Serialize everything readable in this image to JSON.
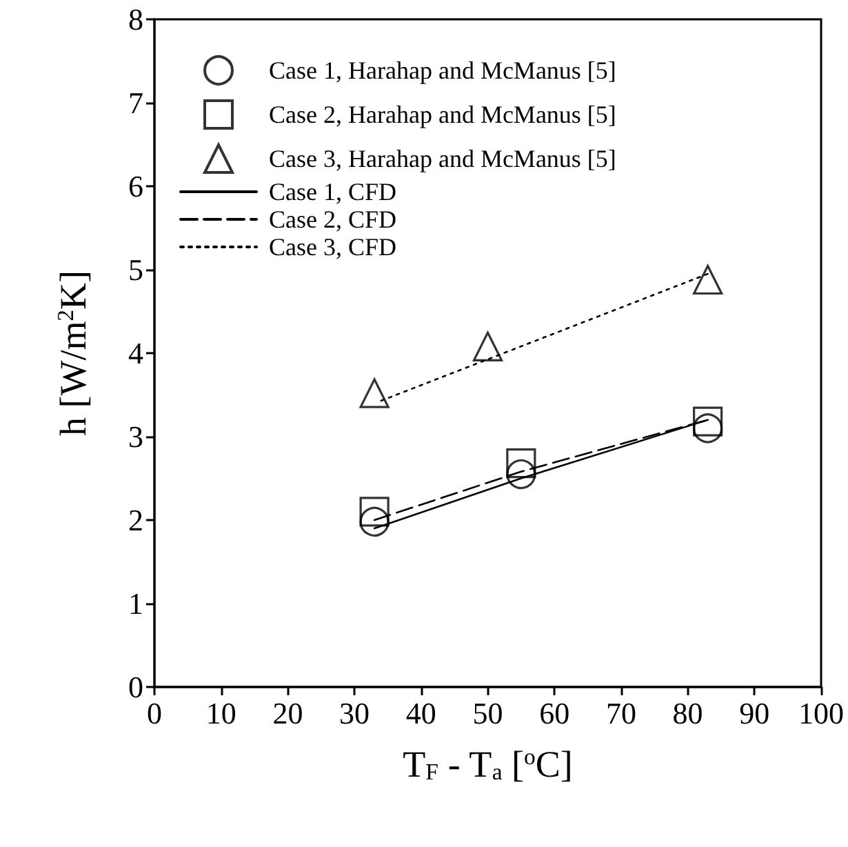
{
  "chart_data": {
    "type": "scatter",
    "xlabel": "T$_{F}$ - T$_{a}$ [$^{o}$C]",
    "ylabel": "h [W/m$^{2}$K]",
    "xlim": [
      0,
      100
    ],
    "xticks": [
      0,
      10,
      20,
      30,
      40,
      50,
      60,
      70,
      80,
      90,
      100
    ],
    "ylim": [
      0,
      8
    ],
    "yticks": [
      0,
      1,
      2,
      3,
      4,
      5,
      6,
      7,
      8
    ],
    "grid": false,
    "legend": "top left",
    "series": [
      {
        "name": "Case 1, Harahap and McManus [5]",
        "marker": "circle",
        "color": "#000000",
        "x": [
          33,
          55,
          83
        ],
        "values": [
          1.98,
          2.55,
          3.1
        ]
      },
      {
        "name": "Case 2, Harahap and McManus [5]",
        "marker": "square",
        "color": "#000000",
        "x": [
          33,
          55,
          83
        ],
        "values": [
          2.1,
          2.68,
          3.18
        ]
      },
      {
        "name": "Case 3, Harahap and McManus [5]",
        "marker": "triangle",
        "color": "#000000",
        "x": [
          33,
          50,
          83
        ],
        "values": [
          3.52,
          4.08,
          4.88
        ]
      },
      {
        "name": "Case 1, CFD",
        "type": "line",
        "marker": "none",
        "line_style": "solid",
        "color": "#000000",
        "x": [
          33,
          55,
          83
        ],
        "values": [
          1.9,
          2.5,
          3.2
        ]
      },
      {
        "name": "Case 2, CFD",
        "type": "line",
        "marker": "none",
        "line_style": "dashed",
        "color": "#000000",
        "x": [
          33,
          55,
          83
        ],
        "values": [
          2.0,
          2.58,
          3.2
        ]
      },
      {
        "name": "Case 3, CFD",
        "type": "line",
        "marker": "none",
        "line_style": "dotted",
        "color": "#000000",
        "x": [
          34,
          83
        ],
        "values": [
          3.43,
          4.95
        ]
      }
    ]
  }
}
